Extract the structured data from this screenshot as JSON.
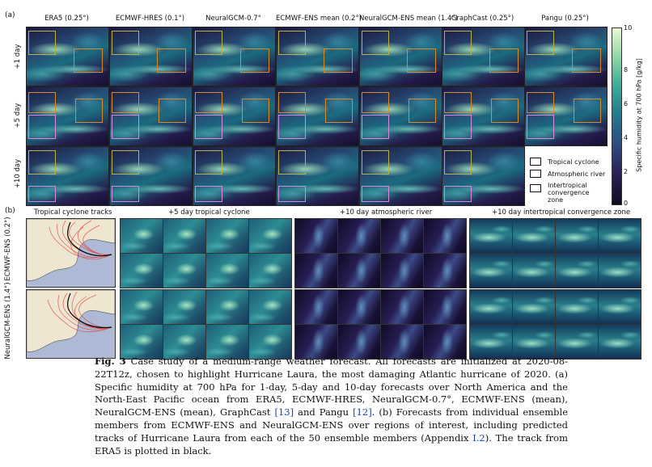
{
  "panel_a": {
    "label": "(a)",
    "columns": [
      "ERA5 (0.25°)",
      "ECMWF-HRES (0.1°)",
      "NeuralGCM-0.7°",
      "ECMWF-ENS mean (0.2°)",
      "NeuralGCM-ENS mean (1.4°)",
      "GraphCast (0.25°)",
      "Pangu (0.25°)"
    ],
    "rows": [
      "+1 day",
      "+5 day",
      "+10 day"
    ],
    "colorbar": {
      "label": "Specific humidity at 700 hPa [g/kg]",
      "ticks": [
        "10",
        "8",
        "6",
        "4",
        "2",
        "0"
      ],
      "colors": [
        "#100b22",
        "#2c4e84",
        "#3bae9a",
        "#e9f9d2"
      ]
    },
    "legend": [
      {
        "label": "Tropical cyclone",
        "color": "#d98a2b"
      },
      {
        "label": "Atmospheric river",
        "color": "#b9b246"
      },
      {
        "label": "Intertropical convergence zone",
        "color": "#d78adf"
      }
    ]
  },
  "panel_b": {
    "label": "(b)",
    "titles": [
      "Tropical cyclone tracks",
      "+5 day tropical cyclone",
      "+10 day atmospheric river",
      "+10 day intertropical convergence zone"
    ],
    "rows": [
      "ECMWF-ENS (0.2°)",
      "NeuralGCM-ENS (1.4°)"
    ]
  },
  "caption": {
    "fig": "Fig. 3",
    "text1": "Case study of a medium-range weather forecast. All forecasts are initialized at 2020-08-22T12z, chosen to highlight Hurricane Laura, the most damaging Atlantic hurricane of 2020. (a) Specific humidity at 700 hPa for 1-day, 5-day and 10-day forecasts over North America and the North-East Pacific ocean from ERA5, ECMWF-HRES, NeuralGCM-0.7°, ECMWF-ENS (mean), NeuralGCM-ENS (mean), GraphCast ",
    "ref1": "[13]",
    "text2": " and Pangu ",
    "ref2": "[12]",
    "text3": ". (b) Forecasts from individual ensemble members from ECMWF-ENS and NeuralGCM-ENS over regions of interest, including predicted tracks of Hurricane Laura from each of the 50 ensemble members (Appendix ",
    "ref3": "I.2",
    "text4": "). The track from ERA5 is plotted in black."
  }
}
